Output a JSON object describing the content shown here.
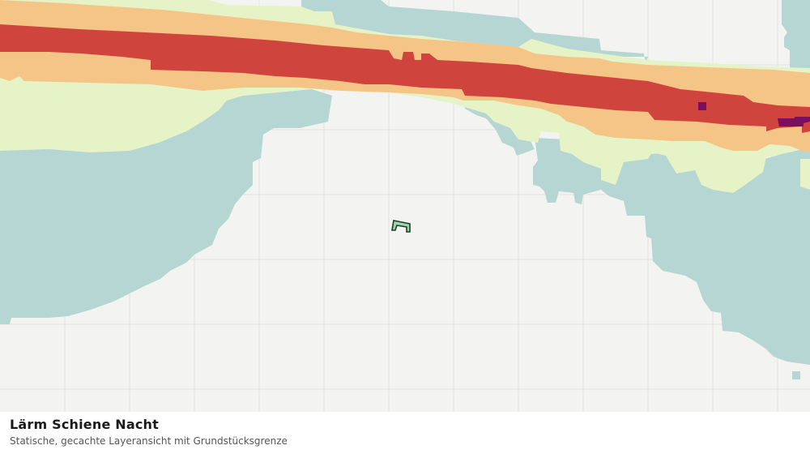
{
  "layer": {
    "title": "Lärm Schiene Nacht",
    "subtitle": "Statische, gecachte Layeransicht mit Grundstücksgrenze"
  },
  "colors": {
    "background": "#f3f4f2",
    "grid": "#e3e5e2",
    "noise_class_low": "#b5d6d2",
    "noise_class_mid": "#e6f3c6",
    "noise_class_high": "#f4c586",
    "noise_class_very_high": "#cf453d",
    "noise_class_extreme": "#7b0f5f",
    "parcel_fill": "#9fd3a8",
    "parcel_stroke": "#1f3d26"
  },
  "icons": {
    "parcel": "parcel-boundary-icon"
  }
}
